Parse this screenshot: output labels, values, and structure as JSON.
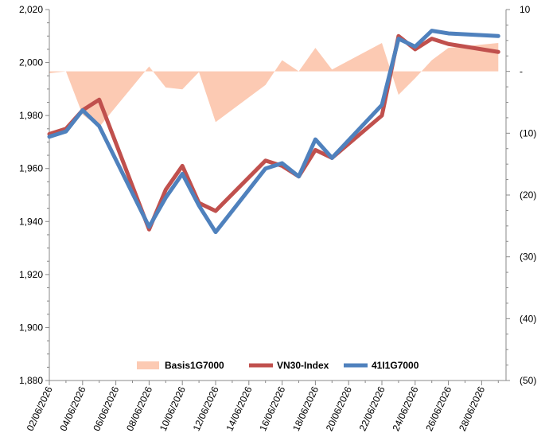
{
  "chart_data": {
    "type": "line",
    "dates": [
      "02/06/2026",
      "03/06/2026",
      "04/06/2026",
      "05/06/2026",
      "08/06/2026",
      "09/06/2026",
      "10/06/2026",
      "11/06/2026",
      "12/06/2026",
      "15/06/2026",
      "16/06/2026",
      "17/06/2026",
      "18/06/2026",
      "19/06/2026",
      "22/06/2026",
      "23/06/2026",
      "24/06/2026",
      "25/06/2026",
      "26/06/2026",
      "29/06/2026"
    ],
    "x_tick_labels": [
      "02/06/2026",
      "04/06/2026",
      "06/06/2026",
      "08/06/2026",
      "10/06/2026",
      "12/06/2026",
      "14/06/2026",
      "16/06/2026",
      "18/06/2026",
      "20/06/2026",
      "22/06/2026",
      "24/06/2026",
      "26/06/2026",
      "28/06/2026"
    ],
    "y_left": {
      "ticks": [
        "1,880",
        "1,900",
        "1,920",
        "1,940",
        "1,960",
        "1,980",
        "2,000",
        "2,020"
      ],
      "min": 1880,
      "max": 2020,
      "step": 20
    },
    "y_right": {
      "ticks": [
        "10",
        "-",
        "(10)",
        "(20)",
        "(30)",
        "(40)",
        "(50)"
      ],
      "min": -50,
      "max": 10,
      "step": 10
    },
    "grid": false,
    "legend_position": "bottom",
    "series": [
      {
        "name": "Basis1G7000",
        "kind": "area",
        "axis": "right",
        "color": "#fccab3",
        "values": [
          -0.3,
          0,
          -7,
          -9,
          0.8,
          -2.6,
          -2.9,
          -0.1,
          -8.2,
          -2.2,
          1.8,
          0,
          3.8,
          0.3,
          4.6,
          -3.8,
          -1.1,
          1.8,
          3.8,
          4.6
        ]
      },
      {
        "name": "VN30-Index",
        "kind": "line",
        "axis": "left",
        "color": "#c0504d",
        "values": [
          1973,
          1975,
          1982,
          1986,
          1937,
          1952,
          1961,
          1947,
          1944,
          1963,
          1961,
          1957,
          1967,
          1964,
          1980,
          2010,
          2005,
          2009,
          2007,
          2004
        ]
      },
      {
        "name": "41I1G7000",
        "kind": "line",
        "axis": "left",
        "color": "#4f81bd",
        "values": [
          1972,
          1974,
          1982,
          1976,
          1938,
          1949,
          1958,
          1946,
          1936,
          1960,
          1962,
          1957,
          1971,
          1964,
          1984,
          2009,
          2006,
          2012,
          2011,
          2010
        ]
      }
    ]
  }
}
